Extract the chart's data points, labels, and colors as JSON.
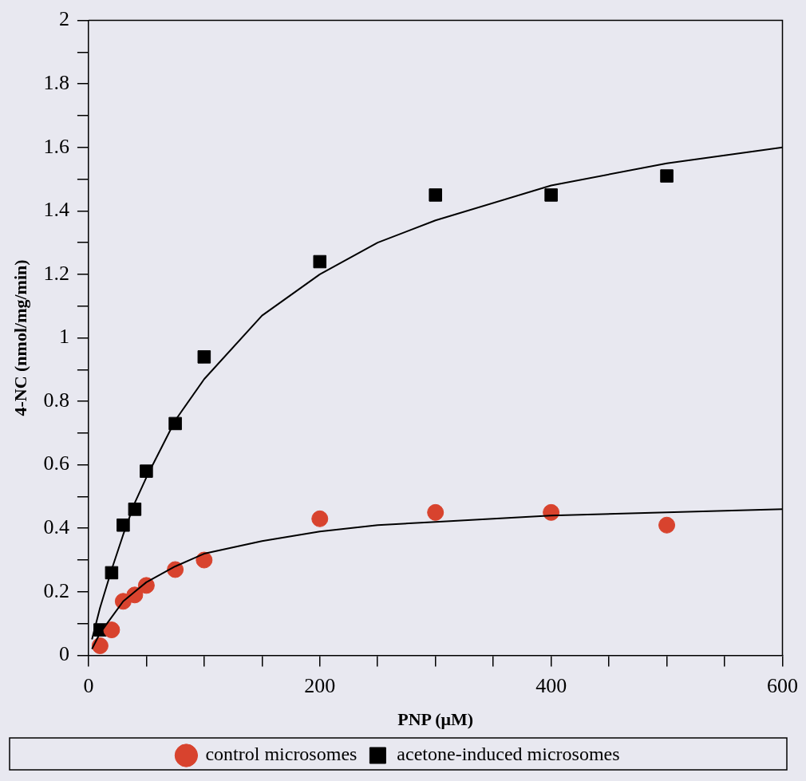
{
  "chart_data": {
    "type": "scatter",
    "xlabel": "PNP (μM)",
    "ylabel": "4-NC (nmol/mg/min)",
    "xlim": [
      0,
      600
    ],
    "xticks": [
      0,
      {
        "value": 50,
        "label": null
      },
      {
        "value": 100,
        "label": null
      },
      {
        "value": 150,
        "label": null
      },
      200,
      {
        "value": 250,
        "label": null
      },
      {
        "value": 300,
        "label": null
      },
      {
        "value": 350,
        "label": null
      },
      400,
      {
        "value": 450,
        "label": null
      },
      {
        "value": 500,
        "label": null
      },
      {
        "value": 550,
        "label": null
      },
      600
    ],
    "ylim": [
      0,
      2
    ],
    "yticks": [
      0,
      {
        "value": 0.1,
        "label": null
      },
      0.2,
      {
        "value": 0.3,
        "label": null
      },
      0.4,
      {
        "value": 0.5,
        "label": null
      },
      0.6,
      {
        "value": 0.7,
        "label": null
      },
      0.8,
      {
        "value": 0.9,
        "label": null
      },
      1,
      {
        "value": 1.1,
        "label": null
      },
      1.2,
      {
        "value": 1.3,
        "label": null
      },
      1.4,
      {
        "value": 1.5,
        "label": null
      },
      1.6,
      {
        "value": 1.7,
        "label": null
      },
      1.8,
      {
        "value": 1.9,
        "label": null
      },
      2
    ],
    "grid": false,
    "legend": "bottom",
    "series": [
      {
        "type": "line",
        "color": "#000000",
        "marker": "none",
        "x": [
          3,
          10,
          20,
          30,
          40,
          50,
          75,
          100,
          150,
          200,
          250,
          300,
          400,
          500,
          600
        ],
        "values": [
          0.02,
          0.07,
          0.12,
          0.17,
          0.2,
          0.23,
          0.28,
          0.32,
          0.36,
          0.39,
          0.41,
          0.42,
          0.44,
          0.45,
          0.46
        ]
      },
      {
        "type": "line",
        "color": "#000000",
        "marker": "none",
        "x": [
          3,
          10,
          20,
          30,
          40,
          50,
          75,
          100,
          150,
          200,
          250,
          300,
          400,
          500,
          600
        ],
        "values": [
          0.05,
          0.15,
          0.27,
          0.38,
          0.48,
          0.56,
          0.74,
          0.87,
          1.07,
          1.2,
          1.3,
          1.37,
          1.48,
          1.55,
          1.6
        ]
      },
      {
        "name": "control microsomes",
        "color": "#d8432e",
        "marker": "circle",
        "x": [
          10,
          20,
          30,
          40,
          50,
          75,
          100,
          200,
          300,
          400,
          500
        ],
        "values": [
          0.03,
          0.08,
          0.17,
          0.19,
          0.22,
          0.27,
          0.3,
          0.43,
          0.45,
          0.45,
          0.41
        ]
      },
      {
        "name": "acetone-induced microsomes",
        "color": "#000000",
        "marker": "square",
        "x": [
          10,
          20,
          30,
          40,
          50,
          75,
          100,
          200,
          300,
          400,
          500
        ],
        "values": [
          0.08,
          0.26,
          0.41,
          0.46,
          0.58,
          0.73,
          0.94,
          1.24,
          1.45,
          1.45,
          1.51
        ]
      }
    ]
  }
}
